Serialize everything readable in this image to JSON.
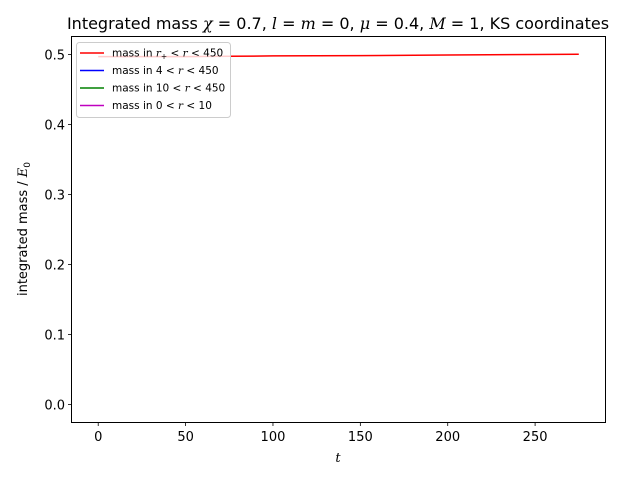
{
  "chart_data": {
    "type": "line",
    "title": {
      "pre": "Integrated mass ",
      "chi_sym": "χ",
      "chi_val": " = 0.7, ",
      "l_sym": "l",
      "l_eq": " = ",
      "m_sym": "m",
      "m_val": " = 0, ",
      "mu_sym": "μ",
      "mu_val": " = 0.4, ",
      "M_sym": "M",
      "M_val": " = 1",
      "post": ", KS coordinates"
    },
    "xlabel": "t",
    "ylabel": {
      "text": "integrated mass / ",
      "E_sym": "E",
      "E_sub": "0"
    },
    "xlim": [
      -15,
      290
    ],
    "ylim": [
      -0.025,
      0.525
    ],
    "xticks": [
      0,
      50,
      100,
      150,
      200,
      250
    ],
    "yticks": [
      0.0,
      0.1,
      0.2,
      0.3,
      0.4,
      0.5
    ],
    "grid": false,
    "legend_position": "top-left",
    "series": [
      {
        "name": "mass in r+ < r < 450",
        "label_parts": {
          "pre": "mass in ",
          "sym": "r",
          "sub": "+",
          "mid": " < ",
          "sym2": "r",
          "post": " < 450"
        },
        "color": "#ff0000",
        "x": [
          0,
          25,
          50,
          75,
          100,
          150,
          200,
          250,
          275
        ],
        "y": [
          0.497,
          0.497,
          0.497,
          0.4975,
          0.498,
          0.4985,
          0.4993,
          0.5,
          0.5005
        ]
      },
      {
        "name": "mass in 4 < r < 450",
        "label_parts": {
          "pre": "mass in 4 < ",
          "sym": "r",
          "post": " < 450"
        },
        "color": "#0000ff",
        "x": [],
        "y": []
      },
      {
        "name": "mass in 10 < r < 450",
        "label_parts": {
          "pre": "mass in 10 < ",
          "sym": "r",
          "post": " < 450"
        },
        "color": "#008000",
        "x": [],
        "y": []
      },
      {
        "name": "mass in 0 < r < 10",
        "label_parts": {
          "pre": "mass in 0 < ",
          "sym": "r",
          "post": " < 10"
        },
        "color": "#bf00bf",
        "x": [],
        "y": []
      }
    ]
  }
}
